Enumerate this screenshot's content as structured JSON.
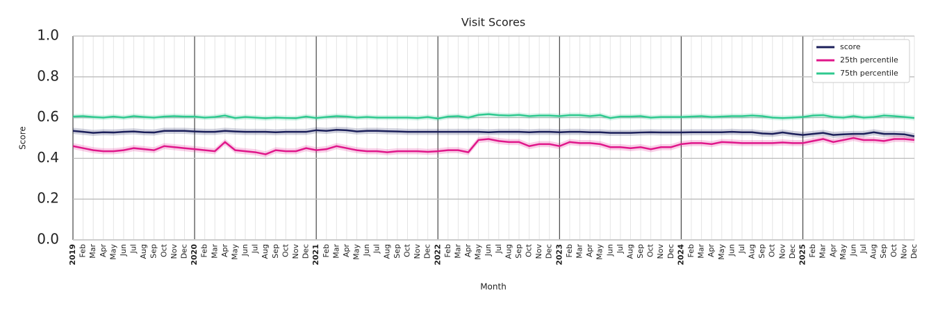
{
  "chart_data": {
    "type": "line",
    "title": "Visit Scores",
    "x_label": "Month",
    "y_label": "Score",
    "categories": [
      "2019",
      "Feb",
      "Mar",
      "Apr",
      "May",
      "Jun",
      "Jul",
      "Aug",
      "Sep",
      "Oct",
      "Nov",
      "Dec",
      "2020",
      "Feb",
      "Mar",
      "Apr",
      "May",
      "Jun",
      "Jul",
      "Aug",
      "Sep",
      "Oct",
      "Nov",
      "Dec",
      "2021",
      "Feb",
      "Mar",
      "Apr",
      "May",
      "Jun",
      "Jul",
      "Aug",
      "Sep",
      "Oct",
      "Nov",
      "Dec",
      "2022",
      "Feb",
      "Mar",
      "Apr",
      "May",
      "Jun",
      "Jul",
      "Aug",
      "Sep",
      "Oct",
      "Nov",
      "Dec",
      "2023",
      "Feb",
      "Mar",
      "Apr",
      "May",
      "Jun",
      "Jul",
      "Aug",
      "Sep",
      "Oct",
      "Nov",
      "Dec",
      "2024",
      "Feb",
      "Mar",
      "Apr",
      "May",
      "Jun",
      "Jul",
      "Aug",
      "Sep",
      "Oct",
      "Nov",
      "Dec",
      "2025",
      "Feb",
      "Mar",
      "Apr",
      "May",
      "Jun",
      "Jul",
      "Aug",
      "Sep",
      "Oct",
      "Nov",
      "Dec"
    ],
    "series": [
      {
        "name": "score",
        "color": "#1b1f5a",
        "band": 0.015,
        "values": [
          0.535,
          0.53,
          0.525,
          0.528,
          0.527,
          0.53,
          0.532,
          0.528,
          0.527,
          0.535,
          0.535,
          0.535,
          0.532,
          0.53,
          0.53,
          0.535,
          0.532,
          0.53,
          0.53,
          0.53,
          0.528,
          0.53,
          0.53,
          0.53,
          0.538,
          0.535,
          0.54,
          0.538,
          0.532,
          0.535,
          0.535,
          0.533,
          0.532,
          0.53,
          0.53,
          0.53,
          0.53,
          0.53,
          0.53,
          0.53,
          0.53,
          0.528,
          0.53,
          0.53,
          0.53,
          0.528,
          0.53,
          0.53,
          0.528,
          0.53,
          0.53,
          0.528,
          0.528,
          0.525,
          0.525,
          0.525,
          0.527,
          0.528,
          0.527,
          0.527,
          0.527,
          0.528,
          0.528,
          0.528,
          0.528,
          0.53,
          0.528,
          0.528,
          0.522,
          0.52,
          0.527,
          0.52,
          0.515,
          0.52,
          0.525,
          0.515,
          0.518,
          0.52,
          0.52,
          0.528,
          0.52,
          0.52,
          0.518,
          0.508
        ]
      },
      {
        "name": "25th percentile",
        "color": "#e0168a",
        "band": 0.015,
        "values": [
          0.46,
          0.45,
          0.44,
          0.435,
          0.435,
          0.44,
          0.45,
          0.445,
          0.44,
          0.46,
          0.455,
          0.45,
          0.445,
          0.44,
          0.435,
          0.48,
          0.44,
          0.435,
          0.43,
          0.42,
          0.44,
          0.435,
          0.435,
          0.45,
          0.44,
          0.445,
          0.46,
          0.45,
          0.44,
          0.435,
          0.435,
          0.43,
          0.435,
          0.435,
          0.435,
          0.432,
          0.435,
          0.44,
          0.44,
          0.43,
          0.49,
          0.495,
          0.485,
          0.48,
          0.48,
          0.46,
          0.47,
          0.47,
          0.46,
          0.48,
          0.475,
          0.475,
          0.47,
          0.455,
          0.455,
          0.45,
          0.455,
          0.445,
          0.455,
          0.455,
          0.47,
          0.475,
          0.475,
          0.47,
          0.48,
          0.478,
          0.475,
          0.475,
          0.475,
          0.475,
          0.478,
          0.475,
          0.475,
          0.485,
          0.495,
          0.48,
          0.49,
          0.5,
          0.49,
          0.49,
          0.485,
          0.495,
          0.495,
          0.49
        ]
      },
      {
        "name": "75th percentile",
        "color": "#2ec98f",
        "band": 0.012,
        "values": [
          0.605,
          0.607,
          0.603,
          0.6,
          0.605,
          0.6,
          0.607,
          0.603,
          0.6,
          0.605,
          0.607,
          0.605,
          0.605,
          0.6,
          0.603,
          0.61,
          0.598,
          0.603,
          0.6,
          0.597,
          0.6,
          0.598,
          0.597,
          0.605,
          0.598,
          0.603,
          0.607,
          0.605,
          0.6,
          0.603,
          0.6,
          0.6,
          0.6,
          0.6,
          0.598,
          0.603,
          0.595,
          0.605,
          0.607,
          0.6,
          0.613,
          0.617,
          0.612,
          0.61,
          0.613,
          0.607,
          0.61,
          0.61,
          0.607,
          0.612,
          0.612,
          0.607,
          0.612,
          0.598,
          0.605,
          0.605,
          0.607,
          0.6,
          0.603,
          0.603,
          0.603,
          0.605,
          0.607,
          0.603,
          0.605,
          0.607,
          0.607,
          0.61,
          0.607,
          0.6,
          0.598,
          0.6,
          0.603,
          0.61,
          0.612,
          0.603,
          0.6,
          0.607,
          0.6,
          0.603,
          0.61,
          0.607,
          0.603,
          0.598
        ]
      }
    ],
    "ylim": [
      0,
      1
    ],
    "yticks": [
      {
        "value": 0,
        "label": "0.0"
      },
      {
        "value": 0.2,
        "label": "0.2"
      },
      {
        "value": 0.4,
        "label": "0.4"
      },
      {
        "value": 0.6,
        "label": "0.6"
      },
      {
        "value": 0.8,
        "label": "0.8"
      },
      {
        "value": 1,
        "label": "1.0"
      }
    ],
    "grid": true,
    "legend": "upper right"
  }
}
